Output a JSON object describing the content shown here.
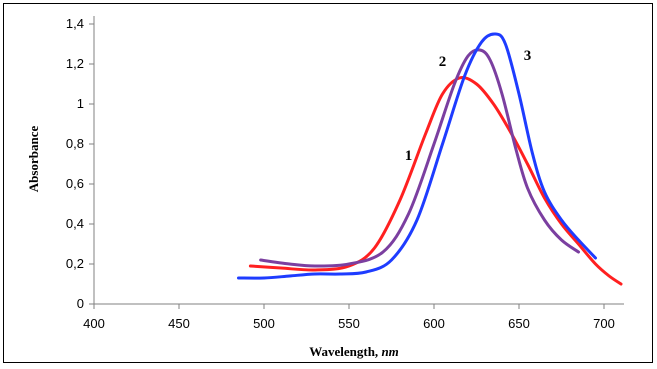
{
  "chart_data": {
    "type": "line",
    "xlabel": "Wavelength, ",
    "xlabel_unit": "nm",
    "ylabel": "Absorbance",
    "xlim": [
      400,
      700
    ],
    "ylim": [
      0,
      1.4
    ],
    "xticks": [
      400,
      450,
      500,
      550,
      600,
      650,
      700
    ],
    "yticks": [
      0,
      0.2,
      0.4,
      0.6,
      0.8,
      1.0,
      1.2,
      1.4
    ],
    "ytick_labels": [
      "0",
      "0,2",
      "0,4",
      "0,6",
      "0,8",
      "1",
      "1,2",
      "1,4"
    ],
    "grid": false,
    "series": [
      {
        "label": "1",
        "color": "#ff2020",
        "points": [
          [
            492,
            0.19
          ],
          [
            510,
            0.18
          ],
          [
            530,
            0.17
          ],
          [
            550,
            0.19
          ],
          [
            565,
            0.28
          ],
          [
            580,
            0.52
          ],
          [
            595,
            0.85
          ],
          [
            605,
            1.05
          ],
          [
            615,
            1.13
          ],
          [
            625,
            1.1
          ],
          [
            635,
            1.0
          ],
          [
            645,
            0.86
          ],
          [
            655,
            0.7
          ],
          [
            665,
            0.53
          ],
          [
            675,
            0.4
          ],
          [
            685,
            0.3
          ],
          [
            695,
            0.2
          ],
          [
            703,
            0.14
          ],
          [
            710,
            0.1
          ]
        ]
      },
      {
        "label": "2",
        "color": "#7b3fa0",
        "points": [
          [
            498,
            0.22
          ],
          [
            515,
            0.2
          ],
          [
            530,
            0.19
          ],
          [
            550,
            0.2
          ],
          [
            570,
            0.26
          ],
          [
            585,
            0.45
          ],
          [
            600,
            0.8
          ],
          [
            612,
            1.1
          ],
          [
            620,
            1.24
          ],
          [
            627,
            1.27
          ],
          [
            633,
            1.22
          ],
          [
            640,
            1.05
          ],
          [
            648,
            0.78
          ],
          [
            655,
            0.58
          ],
          [
            665,
            0.42
          ],
          [
            675,
            0.32
          ],
          [
            685,
            0.26
          ]
        ]
      },
      {
        "label": "3",
        "color": "#1e3cff",
        "points": [
          [
            485,
            0.13
          ],
          [
            500,
            0.13
          ],
          [
            515,
            0.14
          ],
          [
            530,
            0.15
          ],
          [
            545,
            0.15
          ],
          [
            560,
            0.16
          ],
          [
            575,
            0.22
          ],
          [
            590,
            0.42
          ],
          [
            605,
            0.8
          ],
          [
            618,
            1.14
          ],
          [
            628,
            1.31
          ],
          [
            636,
            1.35
          ],
          [
            642,
            1.3
          ],
          [
            650,
            1.05
          ],
          [
            658,
            0.75
          ],
          [
            665,
            0.56
          ],
          [
            675,
            0.42
          ],
          [
            685,
            0.32
          ],
          [
            695,
            0.23
          ]
        ]
      }
    ],
    "annotations": [
      {
        "text": "1",
        "x": 585,
        "y": 0.72
      },
      {
        "text": "2",
        "x": 605,
        "y": 1.19
      },
      {
        "text": "3",
        "x": 655,
        "y": 1.22
      }
    ]
  }
}
